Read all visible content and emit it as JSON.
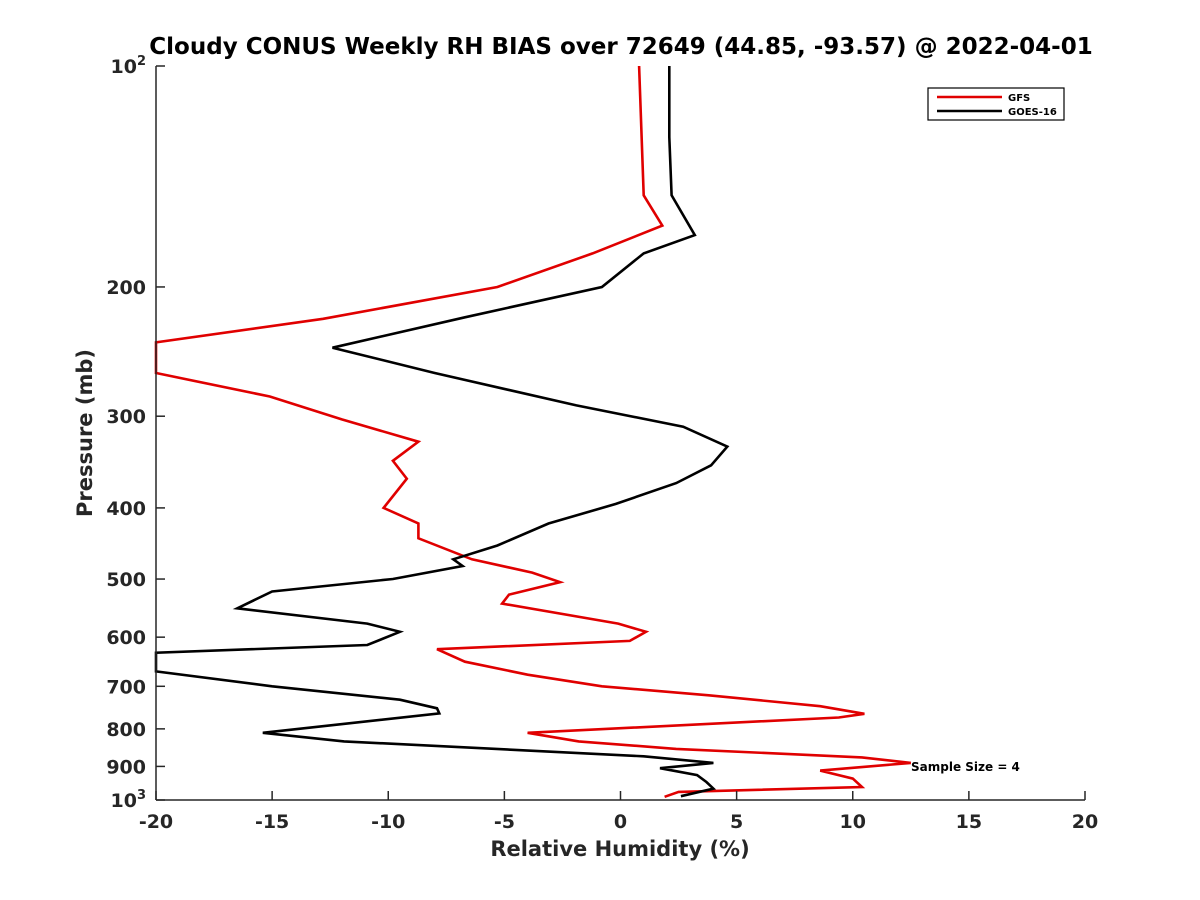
{
  "chart_data": {
    "type": "line",
    "title": "Cloudy CONUS Weekly RH BIAS over 72649 (44.85, -93.57) @ 2022-04-01",
    "xlabel": "Relative Humidity (%)",
    "ylabel": "Pressure (mb)",
    "xlim": [
      -20,
      20
    ],
    "ylim": [
      100,
      1000
    ],
    "y_scale": "log",
    "y_reversed": true,
    "x_ticks": [
      "-20",
      "-15",
      "-10",
      "-5",
      "0",
      "5",
      "10",
      "15",
      "20"
    ],
    "y_ticks": [
      {
        "value": 100,
        "base": "10",
        "exp": "2"
      },
      {
        "value": 200,
        "label": "200"
      },
      {
        "value": 300,
        "label": "300"
      },
      {
        "value": 400,
        "label": "400"
      },
      {
        "value": 500,
        "label": "500"
      },
      {
        "value": 600,
        "label": "600"
      },
      {
        "value": 700,
        "label": "700"
      },
      {
        "value": 800,
        "label": "800"
      },
      {
        "value": 900,
        "label": "900"
      },
      {
        "value": 1000,
        "base": "10",
        "exp": "3"
      }
    ],
    "grid": false,
    "legend_position": "top-right",
    "annotation": "Sample Size = 4",
    "series": [
      {
        "name": "GFS",
        "color": "#e00000",
        "points": [
          [
            0.8,
            100
          ],
          [
            1.0,
            150
          ],
          [
            1.8,
            165
          ],
          [
            -1.2,
            180
          ],
          [
            -5.3,
            200
          ],
          [
            -12.8,
            221
          ],
          [
            -20.0,
            238
          ],
          [
            -20.0,
            262
          ],
          [
            -15.1,
            282
          ],
          [
            -12.0,
            303
          ],
          [
            -8.7,
            325
          ],
          [
            -9.8,
            345
          ],
          [
            -9.2,
            365
          ],
          [
            -10.2,
            400
          ],
          [
            -8.7,
            420
          ],
          [
            -8.7,
            440
          ],
          [
            -6.4,
            470
          ],
          [
            -3.8,
            490
          ],
          [
            -2.6,
            505
          ],
          [
            -4.8,
            525
          ],
          [
            -5.1,
            540
          ],
          [
            -0.1,
            575
          ],
          [
            1.1,
            590
          ],
          [
            0.4,
            607
          ],
          [
            -7.9,
            623
          ],
          [
            -6.7,
            648
          ],
          [
            -4.0,
            675
          ],
          [
            -0.8,
            700
          ],
          [
            3.8,
            720
          ],
          [
            8.6,
            745
          ],
          [
            10.5,
            763
          ],
          [
            9.4,
            772
          ],
          [
            -4.0,
            810
          ],
          [
            -1.8,
            832
          ],
          [
            2.4,
            852
          ],
          [
            10.4,
            875
          ],
          [
            12.5,
            890
          ],
          [
            8.6,
            912
          ],
          [
            10.0,
            935
          ],
          [
            10.4,
            960
          ],
          [
            2.5,
            975
          ],
          [
            1.9,
            990
          ]
        ]
      },
      {
        "name": "GOES-16",
        "color": "#000000",
        "points": [
          [
            2.1,
            100
          ],
          [
            2.1,
            125
          ],
          [
            2.2,
            150
          ],
          [
            3.2,
            170
          ],
          [
            1.0,
            180
          ],
          [
            -0.8,
            200
          ],
          [
            -6.7,
            220
          ],
          [
            -12.4,
            242
          ],
          [
            -8.0,
            262
          ],
          [
            -1.9,
            290
          ],
          [
            2.7,
            310
          ],
          [
            4.6,
            330
          ],
          [
            3.9,
            350
          ],
          [
            2.4,
            370
          ],
          [
            -0.2,
            395
          ],
          [
            -3.1,
            420
          ],
          [
            -5.3,
            450
          ],
          [
            -7.2,
            470
          ],
          [
            -6.8,
            480
          ],
          [
            -9.8,
            500
          ],
          [
            -15.0,
            520
          ],
          [
            -16.5,
            548
          ],
          [
            -10.9,
            575
          ],
          [
            -9.5,
            590
          ],
          [
            -10.9,
            615
          ],
          [
            -20.0,
            630
          ],
          [
            -20.0,
            668
          ],
          [
            -15.0,
            700
          ],
          [
            -9.5,
            730
          ],
          [
            -7.9,
            750
          ],
          [
            -7.8,
            762
          ],
          [
            -15.4,
            810
          ],
          [
            -11.9,
            832
          ],
          [
            1.0,
            872
          ],
          [
            4.0,
            890
          ],
          [
            1.7,
            905
          ],
          [
            3.3,
            925
          ],
          [
            3.7,
            945
          ],
          [
            4.0,
            965
          ],
          [
            2.6,
            988
          ]
        ]
      }
    ]
  }
}
